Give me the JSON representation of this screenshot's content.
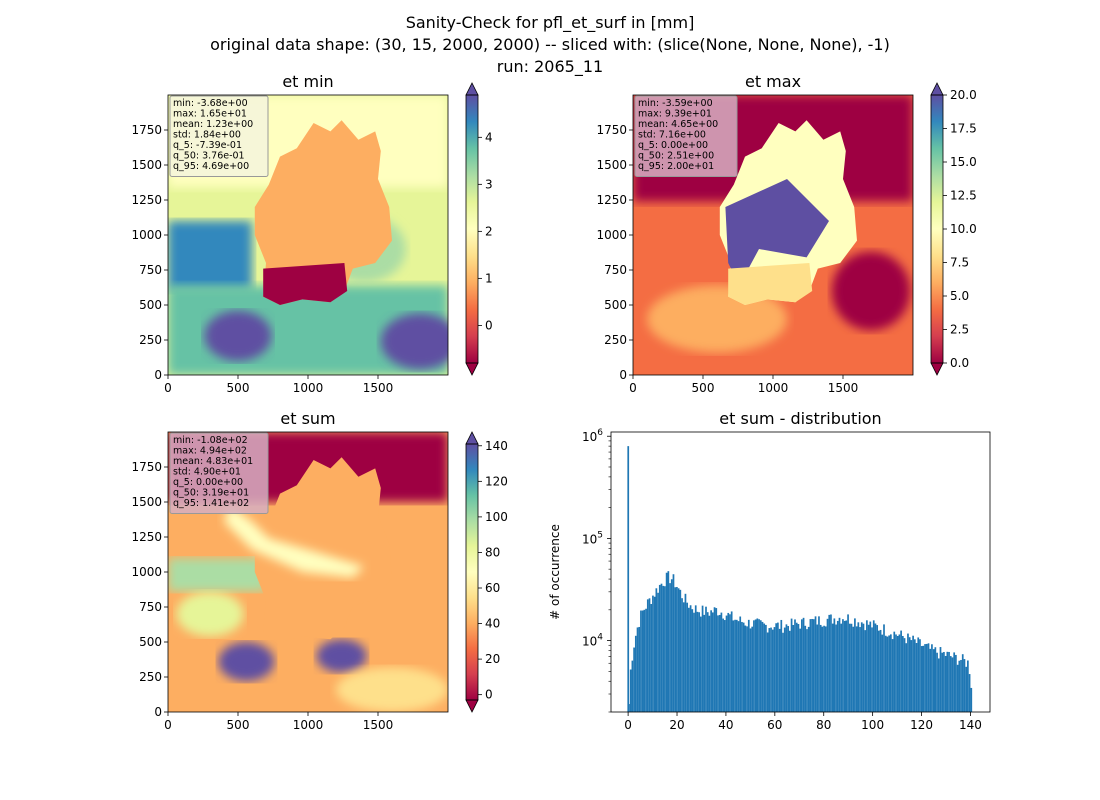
{
  "figure": {
    "title_lines": [
      "Sanity-Check for pfl_et_surf in [mm]",
      "original data shape: (30, 15, 2000, 2000) -- sliced with: (slice(None, None, None), -1)",
      "run: 2065_11"
    ]
  },
  "colors": {
    "spectral": [
      "#9e0142",
      "#d53e4f",
      "#f46d43",
      "#fdae61",
      "#fee08b",
      "#ffffbf",
      "#e6f598",
      "#abdda4",
      "#66c2a5",
      "#3288bd",
      "#5e4fa2"
    ],
    "hist_bar": "#1f77b4"
  },
  "chart_data": [
    {
      "type": "heatmap",
      "title": "et min",
      "xlim": [
        0,
        2000
      ],
      "ylim": [
        0,
        2000
      ],
      "xticks": [
        "0",
        "500",
        "1000",
        "1500"
      ],
      "yticks": [
        "0",
        "250",
        "500",
        "750",
        "1000",
        "1250",
        "1500",
        "1750"
      ],
      "colorbar": {
        "cmap": "Spectral",
        "vmin": -0.8,
        "vmax": 4.9,
        "extend": "both",
        "ticks": [
          "0",
          "1",
          "2",
          "3",
          "4"
        ]
      },
      "stats": [
        "min: -3.68e+00",
        "max: 1.65e+01",
        "mean: 1.23e+00",
        "std: 1.84e+00",
        "q_5: -7.39e-01",
        "q_50: 3.76e-01",
        "q_95: 4.69e+00"
      ]
    },
    {
      "type": "heatmap",
      "title": "et max",
      "xlim": [
        0,
        2000
      ],
      "ylim": [
        0,
        2000
      ],
      "xticks": [
        "0",
        "500",
        "1000",
        "1500"
      ],
      "yticks": [
        "0",
        "250",
        "500",
        "750",
        "1000",
        "1250",
        "1500",
        "1750"
      ],
      "colorbar": {
        "cmap": "Spectral",
        "vmin": 0,
        "vmax": 20,
        "extend": "both",
        "ticks": [
          "0.0",
          "2.5",
          "5.0",
          "7.5",
          "10.0",
          "12.5",
          "15.0",
          "17.5",
          "20.0"
        ]
      },
      "stats": [
        "min: -3.59e+00",
        "max: 9.39e+01",
        "mean: 4.65e+00",
        "std: 7.16e+00",
        "q_5: 0.00e+00",
        "q_50: 2.51e+00",
        "q_95: 2.00e+01"
      ]
    },
    {
      "type": "heatmap",
      "title": "et sum",
      "xlim": [
        0,
        2000
      ],
      "ylim": [
        0,
        2000
      ],
      "xticks": [
        "0",
        "500",
        "1000",
        "1500"
      ],
      "yticks": [
        "0",
        "250",
        "500",
        "750",
        "1000",
        "1250",
        "1500",
        "1750"
      ],
      "colorbar": {
        "cmap": "Spectral",
        "vmin": -3,
        "vmax": 141,
        "extend": "both",
        "ticks": [
          "0",
          "20",
          "40",
          "60",
          "80",
          "100",
          "120",
          "140"
        ]
      },
      "stats": [
        "min: -1.08e+02",
        "max: 4.94e+02",
        "mean: 4.83e+01",
        "std: 4.90e+01",
        "q_5: 0.00e+00",
        "q_50: 3.19e+01",
        "q_95: 1.41e+02"
      ]
    },
    {
      "type": "bar",
      "title": "et sum - distribution",
      "ylabel": "# of occurrence",
      "yscale": "log",
      "xlim": [
        -7,
        148
      ],
      "ylim": [
        2000,
        1100000
      ],
      "xticks": [
        "0",
        "20",
        "40",
        "60",
        "80",
        "100",
        "120",
        "140"
      ],
      "yticks": [
        "10^4",
        "10^5",
        "10^6"
      ],
      "bin_width": 0.7,
      "profile": [
        [
          -0.3,
          800000
        ],
        [
          0,
          2400
        ],
        [
          0.5,
          4500
        ],
        [
          1,
          6200
        ],
        [
          2,
          9000
        ],
        [
          3,
          12000
        ],
        [
          4,
          15000
        ],
        [
          5,
          18000
        ],
        [
          6,
          20000
        ],
        [
          8,
          24000
        ],
        [
          10,
          28000
        ],
        [
          12,
          33000
        ],
        [
          14,
          38000
        ],
        [
          16,
          42000
        ],
        [
          18,
          40000
        ],
        [
          20,
          33000
        ],
        [
          22,
          27000
        ],
        [
          25,
          22000
        ],
        [
          28,
          20000
        ],
        [
          30,
          19500
        ],
        [
          33,
          19000
        ],
        [
          36,
          20000
        ],
        [
          40,
          18000
        ],
        [
          44,
          16000
        ],
        [
          48,
          15000
        ],
        [
          52,
          14500
        ],
        [
          56,
          14000
        ],
        [
          60,
          14000
        ],
        [
          64,
          14000
        ],
        [
          68,
          14500
        ],
        [
          72,
          15000
        ],
        [
          76,
          15500
        ],
        [
          80,
          16000
        ],
        [
          84,
          16500
        ],
        [
          88,
          17000
        ],
        [
          92,
          16000
        ],
        [
          96,
          15000
        ],
        [
          100,
          14000
        ],
        [
          104,
          13000
        ],
        [
          108,
          12000
        ],
        [
          112,
          11000
        ],
        [
          116,
          10000
        ],
        [
          120,
          9000
        ],
        [
          124,
          8000
        ],
        [
          128,
          7500
        ],
        [
          132,
          7000
        ],
        [
          136,
          6500
        ],
        [
          139,
          6000
        ],
        [
          140.5,
          3000
        ]
      ]
    }
  ]
}
